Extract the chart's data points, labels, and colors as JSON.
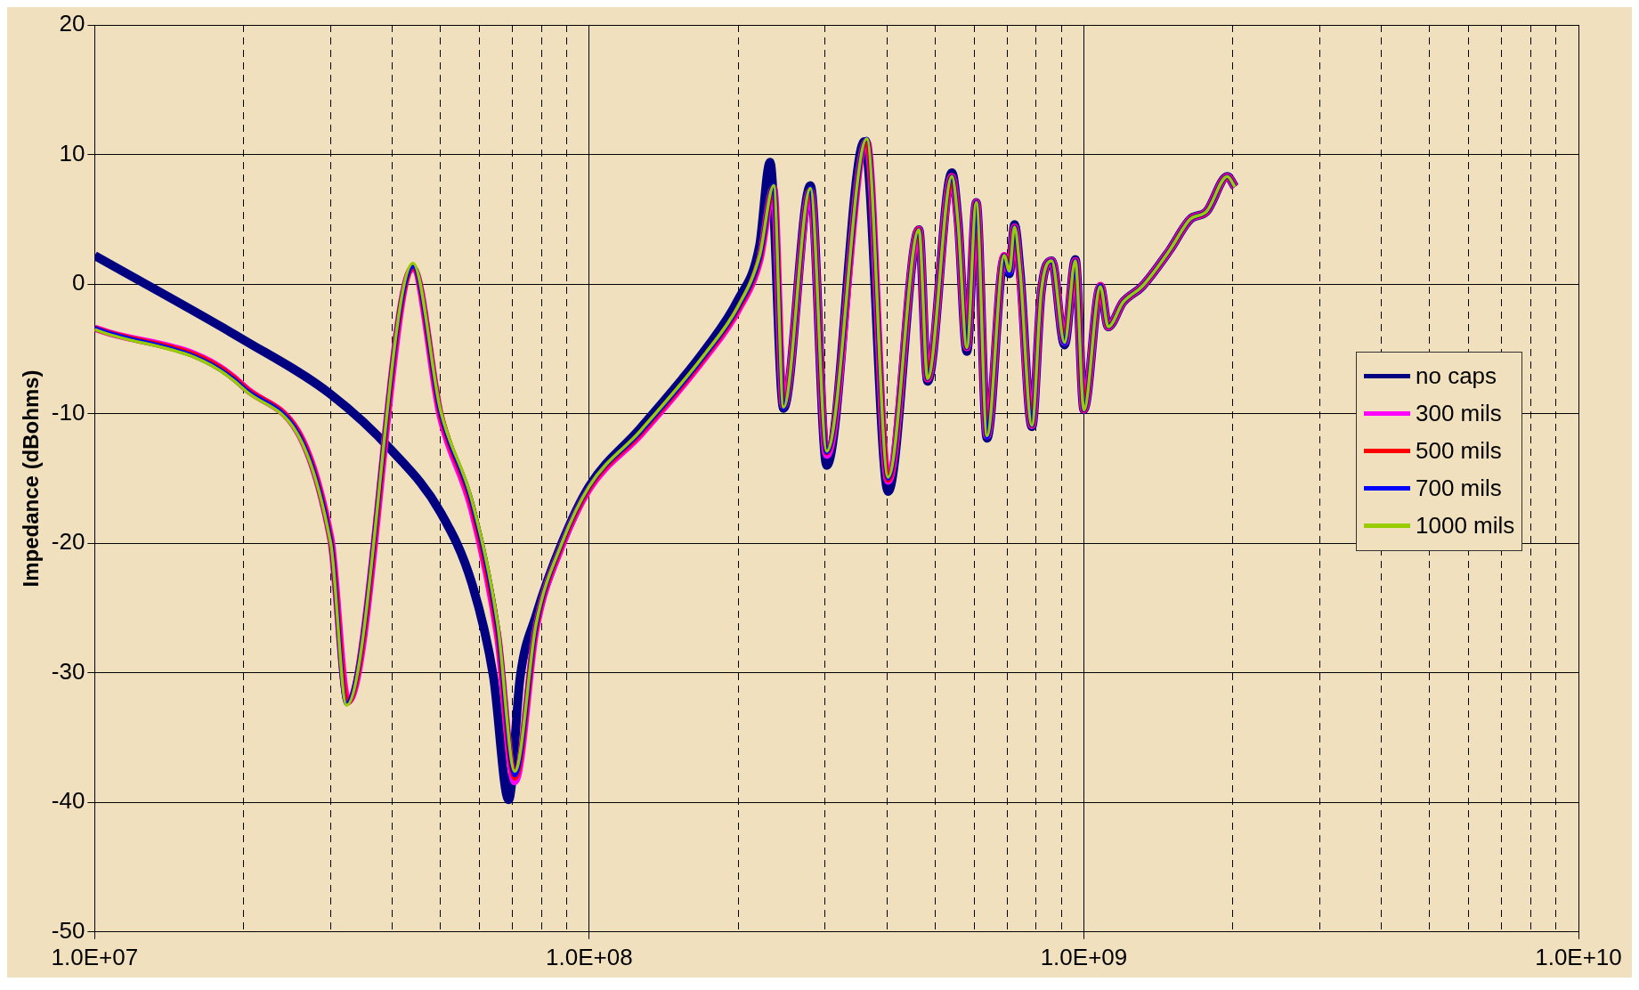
{
  "chart_data": {
    "type": "line",
    "ylabel": "Impedance (dBohms)",
    "log": "x",
    "xlim": [
      10000000,
      10000000000
    ],
    "xticks": [
      {
        "value": 10000000,
        "label": "1.0E+07"
      },
      {
        "value": 20000000,
        "label": null
      },
      {
        "value": 30000000,
        "label": null
      },
      {
        "value": 40000000,
        "label": null
      },
      {
        "value": 50000000,
        "label": null
      },
      {
        "value": 60000000,
        "label": null
      },
      {
        "value": 70000000,
        "label": null
      },
      {
        "value": 80000000,
        "label": null
      },
      {
        "value": 90000000,
        "label": null
      },
      {
        "value": 100000000,
        "label": "1.0E+08"
      },
      {
        "value": 200000000,
        "label": null
      },
      {
        "value": 300000000,
        "label": null
      },
      {
        "value": 400000000,
        "label": null
      },
      {
        "value": 500000000,
        "label": null
      },
      {
        "value": 600000000,
        "label": null
      },
      {
        "value": 700000000,
        "label": null
      },
      {
        "value": 800000000,
        "label": null
      },
      {
        "value": 900000000,
        "label": null
      },
      {
        "value": 1000000000,
        "label": "1.0E+09"
      },
      {
        "value": 2000000000,
        "label": null
      },
      {
        "value": 3000000000,
        "label": null
      },
      {
        "value": 4000000000,
        "label": null
      },
      {
        "value": 5000000000,
        "label": null
      },
      {
        "value": 6000000000,
        "label": null
      },
      {
        "value": 7000000000,
        "label": null
      },
      {
        "value": 8000000000,
        "label": null
      },
      {
        "value": 9000000000,
        "label": null
      },
      {
        "value": 10000000000,
        "label": "1.0E+10"
      }
    ],
    "ylim": [
      -50,
      20
    ],
    "yticks": [
      -50,
      -40,
      -30,
      -20,
      -10,
      0,
      10,
      20
    ],
    "grid": true,
    "legend": "right",
    "line_style": "solid",
    "marker": "none",
    "series": [
      {
        "name": "no caps",
        "color": "#000080",
        "x": [
          10000000.0,
          20000000.0,
          30000000.0,
          40000000.0,
          50000000.0,
          58000000.0,
          64000000.0,
          68700000.0,
          72500000.0,
          78000000.0,
          88000000.0,
          100000000.0,
          127000000.0,
          172000000.0,
          200000000.0,
          221000000.0,
          232000000.0,
          247000000.0,
          280000000.0,
          302000000.0,
          360000000.0,
          402000000.0,
          464000000.0,
          483000000.0,
          541000000.0,
          557000000.0,
          580000000.0,
          606000000.0,
          637000000.0,
          690000000.0,
          707000000.0,
          724000000.0,
          743000000.0,
          785000000.0,
          820000000.0,
          861000000.0,
          914000000.0,
          961000000.0,
          1000000000.0,
          1080000000.0,
          1120000000.0,
          1200000000.0,
          1310000000.0,
          1490000000.0,
          1640000000.0,
          1770000000.0,
          1950000000.0,
          2020000000.0
        ],
        "values": [
          2.2,
          -4.3,
          -8.5,
          -12.9,
          -17.6,
          -23.2,
          -30.3,
          -39.8,
          -30.3,
          -25.6,
          -20,
          -15.6,
          -11.1,
          -5.0,
          -1.2,
          3.0,
          9.4,
          -9.6,
          7.6,
          -14,
          11,
          -16,
          4.2,
          -7.5,
          8.6,
          4.8,
          -5.2,
          6.3,
          -11.9,
          2.0,
          0.8,
          4.6,
          1.0,
          -11.0,
          -0.6,
          1.8,
          -4.7,
          1.9,
          -9.7,
          -0.2,
          -3.3,
          -1.4,
          -0.2,
          2.6,
          5.0,
          5.6,
          8.3,
          7.5
        ]
      },
      {
        "name": "300 mils",
        "color": "#ff00ff",
        "x": [
          10000000.0,
          20000000.0,
          30000000.0,
          32500000.0,
          44000000.0,
          50000000.0,
          58000000.0,
          65300000.0,
          70700000.0,
          78000000.0,
          88000000.0,
          100000000.0,
          127000000.0,
          172000000.0,
          200000000.0,
          221000000.0,
          236000000.0,
          247000000.0,
          280000000.0,
          302000000.0,
          364000000.0,
          402000000.0,
          464000000.0,
          483000000.0,
          541000000.0,
          557000000.0,
          580000000.0,
          606000000.0,
          637000000.0,
          690000000.0,
          707000000.0,
          724000000.0,
          743000000.0,
          785000000.0,
          820000000.0,
          861000000.0,
          914000000.0,
          961000000.0,
          1000000000.0,
          1080000000.0,
          1120000000.0,
          1200000000.0,
          1310000000.0,
          1490000000.0,
          1640000000.0,
          1770000000.0,
          1950000000.0,
          2020000000.0
        ],
        "values": [
          -3.4,
          -7.9,
          -19.6,
          -32.2,
          1.2,
          -10.2,
          -17.5,
          -27.2,
          -38.4,
          -26.6,
          -20.2,
          -15.8,
          -11.6,
          -5.6,
          -2.0,
          1.8,
          7.4,
          -9.4,
          7.2,
          -13.2,
          11.0,
          -15.2,
          4.2,
          -7.3,
          8.3,
          4.6,
          -4.9,
          6.3,
          -11.7,
          2.2,
          1.0,
          4.4,
          0.6,
          -10.9,
          -0.6,
          1.8,
          -4.5,
          1.8,
          -9.7,
          -0.1,
          -3.3,
          -1.4,
          -0.2,
          2.6,
          5.0,
          5.6,
          8.3,
          7.5
        ]
      },
      {
        "name": "500 mils",
        "color": "#ff0000",
        "x": [
          10000000.0,
          20000000.0,
          30000000.0,
          32400000.0,
          44000000.0,
          50000000.0,
          58000000.0,
          65300000.0,
          70700000.0,
          78000000.0,
          88000000.0,
          100000000.0,
          127000000.0,
          172000000.0,
          200000000.0,
          221000000.0,
          236000000.0,
          247000000.0,
          280000000.0,
          302000000.0,
          364000000.0,
          402000000.0,
          464000000.0,
          483000000.0,
          541000000.0,
          557000000.0,
          580000000.0,
          606000000.0,
          637000000.0,
          690000000.0,
          707000000.0,
          724000000.0,
          743000000.0,
          785000000.0,
          820000000.0,
          861000000.0,
          914000000.0,
          961000000.0,
          1000000000.0,
          1080000000.0,
          1120000000.0,
          1200000000.0,
          1310000000.0,
          1490000000.0,
          1640000000.0,
          1770000000.0,
          1950000000.0,
          2020000000.0
        ],
        "values": [
          -3.4,
          -7.9,
          -19.7,
          -32.3,
          1.3,
          -10.0,
          -17.2,
          -26.9,
          -38.1,
          -26.5,
          -20.1,
          -15.7,
          -11.5,
          -5.5,
          -1.9,
          1.9,
          7.5,
          -9.5,
          7.3,
          -13.0,
          11.1,
          -15.1,
          4.2,
          -7.3,
          8.3,
          4.6,
          -4.9,
          6.3,
          -11.7,
          2.2,
          1.0,
          4.4,
          0.6,
          -10.9,
          -0.6,
          1.8,
          -4.5,
          1.8,
          -9.7,
          -0.1,
          -3.3,
          -1.4,
          -0.2,
          2.6,
          5.0,
          5.6,
          8.3,
          7.5
        ]
      },
      {
        "name": "700 mils",
        "color": "#0000ff",
        "x": [
          10000000.0,
          20000000.0,
          30000000.0,
          32300000.0,
          44000000.0,
          50000000.0,
          58000000.0,
          65300000.0,
          70700000.0,
          78000000.0,
          88000000.0,
          100000000.0,
          127000000.0,
          172000000.0,
          200000000.0,
          221000000.0,
          236000000.0,
          247000000.0,
          280000000.0,
          302000000.0,
          364000000.0,
          402000000.0,
          464000000.0,
          483000000.0,
          541000000.0,
          557000000.0,
          580000000.0,
          606000000.0,
          637000000.0,
          690000000.0,
          707000000.0,
          724000000.0,
          743000000.0,
          785000000.0,
          820000000.0,
          861000000.0,
          914000000.0,
          961000000.0,
          1000000000.0,
          1080000000.0,
          1120000000.0,
          1200000000.0,
          1310000000.0,
          1490000000.0,
          1640000000.0,
          1770000000.0,
          1950000000.0,
          2020000000.0
        ],
        "values": [
          -3.4,
          -8.0,
          -19.8,
          -32.4,
          1.4,
          -9.9,
          -17.0,
          -26.6,
          -37.9,
          -26.4,
          -20.0,
          -15.6,
          -11.4,
          -5.4,
          -1.8,
          2.0,
          7.6,
          -9.6,
          7.4,
          -13.0,
          11.2,
          -15.0,
          4.2,
          -7.3,
          8.3,
          4.6,
          -4.9,
          6.3,
          -11.8,
          2.2,
          0.8,
          4.4,
          0.8,
          -10.9,
          -0.6,
          1.8,
          -4.6,
          1.8,
          -9.7,
          -0.1,
          -3.3,
          -1.4,
          -0.2,
          2.6,
          5.0,
          5.6,
          8.3,
          7.5
        ]
      },
      {
        "name": "1000 mils",
        "color": "#99cc00",
        "x": [
          10000000.0,
          20000000.0,
          30000000.0,
          32300000.0,
          44000000.0,
          50000000.0,
          58000000.0,
          65300000.0,
          70700000.0,
          78000000.0,
          88000000.0,
          100000000.0,
          127000000.0,
          172000000.0,
          200000000.0,
          221000000.0,
          236000000.0,
          247000000.0,
          280000000.0,
          302000000.0,
          364000000.0,
          402000000.0,
          464000000.0,
          483000000.0,
          541000000.0,
          557000000.0,
          580000000.0,
          606000000.0,
          637000000.0,
          690000000.0,
          707000000.0,
          724000000.0,
          743000000.0,
          785000000.0,
          820000000.0,
          861000000.0,
          914000000.0,
          961000000.0,
          1000000000.0,
          1080000000.0,
          1120000000.0,
          1200000000.0,
          1310000000.0,
          1490000000.0,
          1640000000.0,
          1770000000.0,
          1950000000.0,
          2020000000.0
        ],
        "values": [
          -3.5,
          -8.1,
          -20,
          -32.5,
          1.6,
          -9.7,
          -16.8,
          -26.3,
          -37.6,
          -26.3,
          -20,
          -15.6,
          -11.3,
          -5.3,
          -1.7,
          2.2,
          7.6,
          -9.5,
          7.4,
          -12.9,
          11.2,
          -14.9,
          4.2,
          -7.3,
          8.3,
          4.6,
          -4.9,
          6.3,
          -11.7,
          2.2,
          1.0,
          4.4,
          1.0,
          -10.9,
          -0.6,
          1.8,
          -4.5,
          1.8,
          -9.7,
          -0.2,
          -3.3,
          -1.4,
          -0.2,
          2.6,
          5.0,
          5.6,
          8.3,
          7.5
        ]
      }
    ]
  }
}
